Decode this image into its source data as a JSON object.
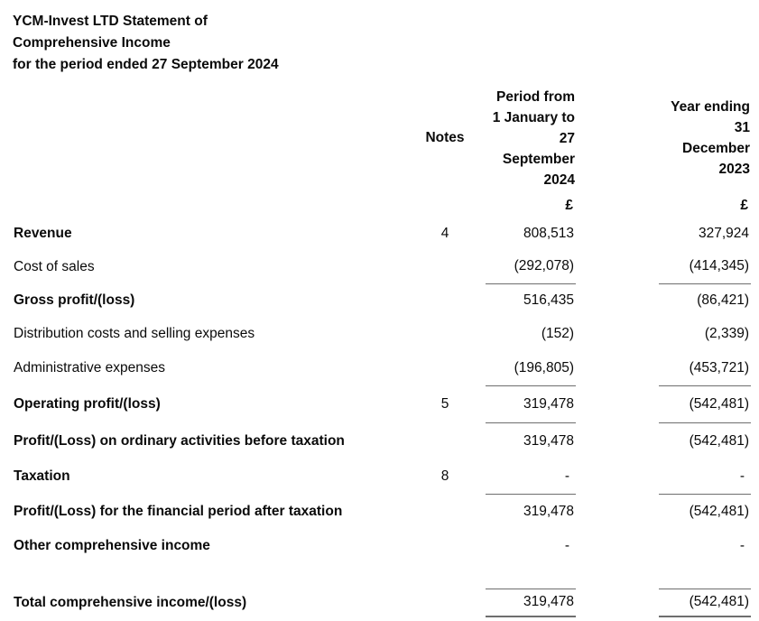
{
  "title": {
    "line1": "YCM-Invest LTD Statement of",
    "line2": "Comprehensive Income",
    "line3": "for the period ended 27 September 2024"
  },
  "table": {
    "headers": {
      "notes": "Notes",
      "period_current": "Period from\n1 January to\n27\nSeptember\n2024",
      "period_prior": "Year ending\n31\nDecember\n2023",
      "currency_current": "£",
      "currency_prior": "£"
    },
    "rows": [
      {
        "label": "Revenue",
        "bold": true,
        "note": "4",
        "current": "808,513",
        "prior": "327,924",
        "rule_above": false,
        "rule_below": false,
        "total": false
      },
      {
        "label": "Cost of sales",
        "bold": false,
        "note": "",
        "current": "(292,078)",
        "prior": "(414,345)",
        "rule_above": false,
        "rule_below": false,
        "total": false
      },
      {
        "label": "Gross profit/(loss)",
        "bold": true,
        "note": "",
        "current": "516,435",
        "prior": "(86,421)",
        "rule_above": true,
        "rule_below": false,
        "total": false
      },
      {
        "label": "Distribution costs and selling expenses",
        "bold": false,
        "note": "",
        "current": "(152)",
        "prior": "(2,339)",
        "rule_above": false,
        "rule_below": false,
        "total": false
      },
      {
        "label": "Administrative expenses",
        "bold": false,
        "note": "",
        "current": "(196,805)",
        "prior": "(453,721)",
        "rule_above": false,
        "rule_below": false,
        "total": false
      },
      {
        "label": "Operating profit/(loss)",
        "bold": true,
        "note": "5",
        "current": "319,478",
        "prior": "(542,481)",
        "rule_above": true,
        "rule_below": false,
        "total": false
      },
      {
        "label": "Profit/(Loss) on ordinary activities before taxation",
        "bold": true,
        "note": "",
        "current": "319,478",
        "prior": "(542,481)",
        "rule_above": true,
        "rule_below": false,
        "total": false
      },
      {
        "label": "Taxation",
        "bold": true,
        "note": "8",
        "current": "-",
        "prior": "-",
        "rule_above": false,
        "rule_below": false,
        "total": false
      },
      {
        "label": "Profit/(Loss) for the financial period after taxation",
        "bold": true,
        "note": "",
        "current": "319,478",
        "prior": "(542,481)",
        "rule_above": true,
        "rule_below": false,
        "total": false
      },
      {
        "label": "Other comprehensive income",
        "bold": true,
        "note": "",
        "current": "-",
        "prior": "-",
        "rule_above": false,
        "rule_below": false,
        "total": false
      },
      {
        "label": "Total comprehensive income/(loss)",
        "bold": true,
        "note": "",
        "current": "319,478",
        "prior": "(542,481)",
        "rule_above": true,
        "rule_below": true,
        "total": true
      }
    ]
  },
  "colors": {
    "text": "#0a0a0a",
    "rule": "#6e6e6e",
    "background": "#ffffff"
  }
}
